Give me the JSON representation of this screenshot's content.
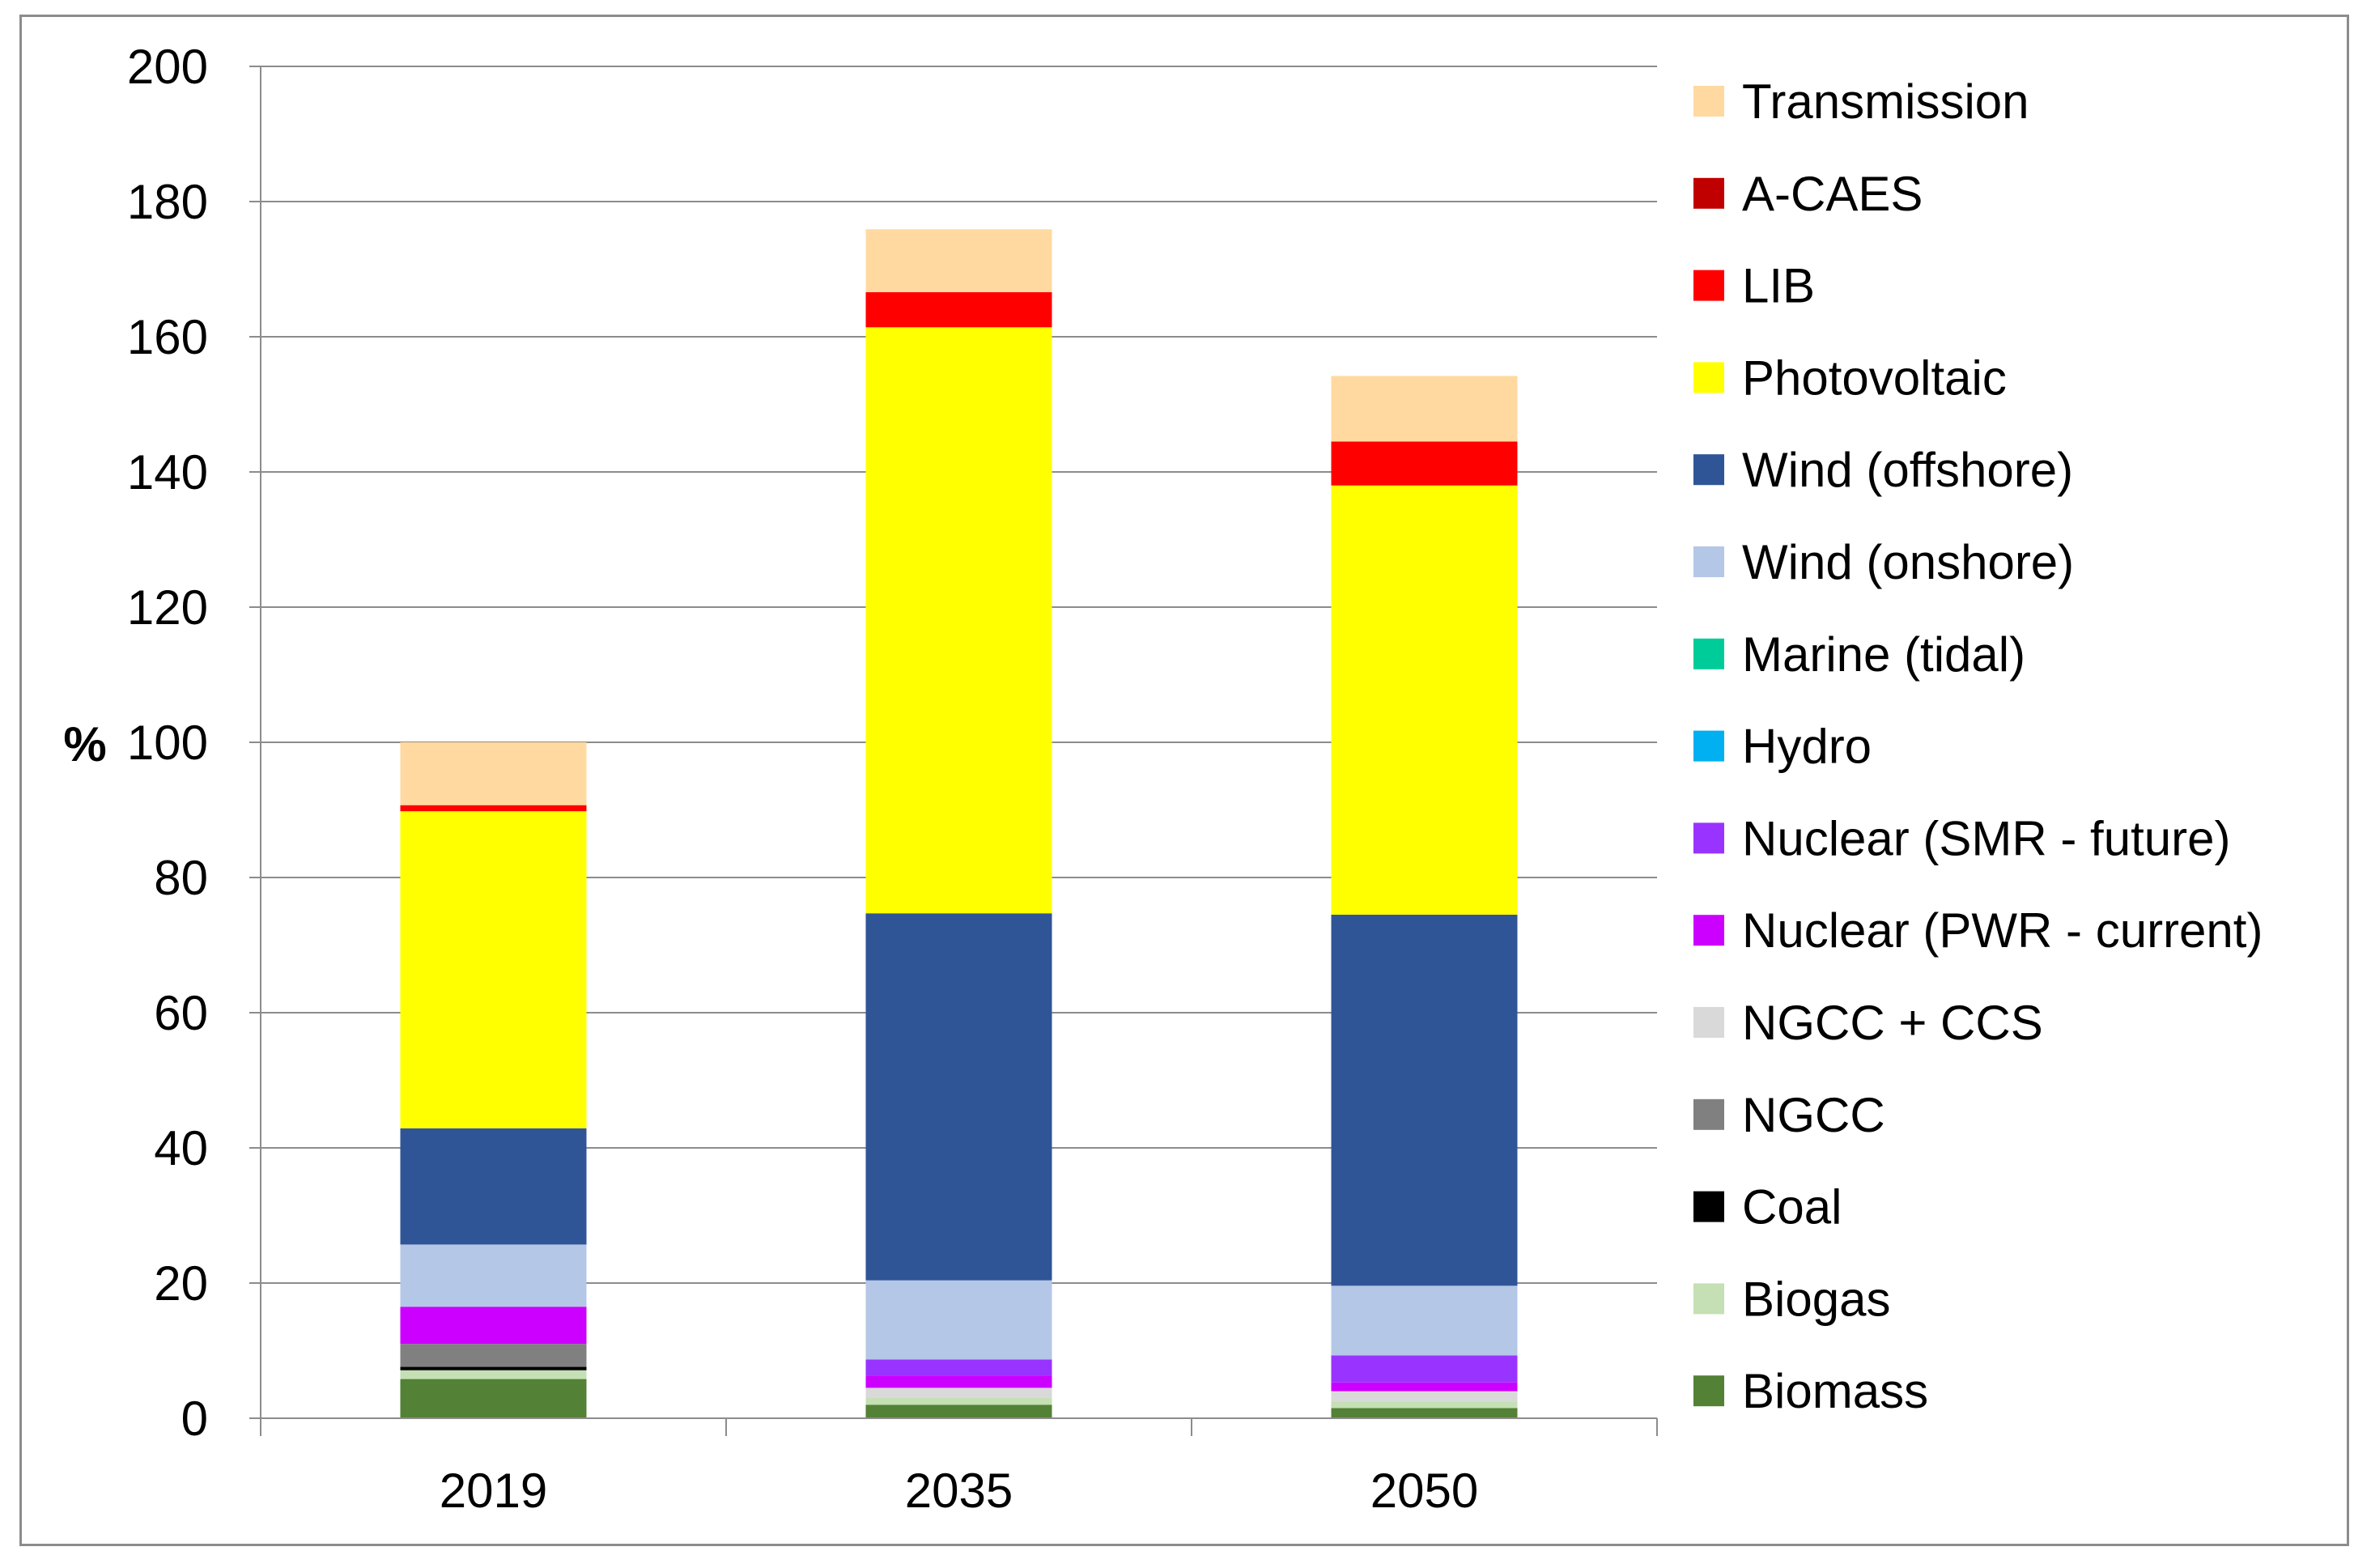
{
  "chart_data": {
    "type": "bar",
    "stacked": true,
    "title": "",
    "xlabel": "",
    "ylabel": "%",
    "ylim": [
      0,
      200
    ],
    "yticks": [
      0,
      20,
      40,
      60,
      80,
      100,
      120,
      140,
      160,
      180,
      200
    ],
    "grid": true,
    "legend_position": "right",
    "categories": [
      "2019",
      "2035",
      "2050"
    ],
    "series": [
      {
        "name": "Biomass",
        "color": "#538135",
        "values": [
          5.8,
          2.0,
          1.5
        ]
      },
      {
        "name": "Biogas",
        "color": "#C5E0B4",
        "values": [
          1.3,
          1.0,
          1.0
        ]
      },
      {
        "name": "Coal",
        "color": "#000000",
        "values": [
          0.5,
          0,
          0
        ]
      },
      {
        "name": "NGCC",
        "color": "#808080",
        "values": [
          3.4,
          0,
          0
        ]
      },
      {
        "name": "NGCC + CCS",
        "color": "#D9D9D9",
        "values": [
          0,
          1.5,
          1.5
        ]
      },
      {
        "name": "Nuclear (PWR - current)",
        "color": "#CC00FF",
        "values": [
          5.5,
          1.8,
          1.3
        ]
      },
      {
        "name": "Nuclear (SMR - future)",
        "color": "#9933FF",
        "values": [
          0,
          2.4,
          4.0
        ]
      },
      {
        "name": "Hydro",
        "color": "#00B0F0",
        "values": [
          0,
          0,
          0
        ]
      },
      {
        "name": "Marine (tidal)",
        "color": "#00CC99",
        "values": [
          0,
          0,
          0
        ]
      },
      {
        "name": "Wind (onshore)",
        "color": "#B4C7E7",
        "values": [
          9.2,
          11.7,
          10.3
        ]
      },
      {
        "name": "Wind (offshore)",
        "color": "#2F5597",
        "values": [
          17.2,
          54.3,
          54.9
        ]
      },
      {
        "name": "Photovoltaic",
        "color": "#FFFF00",
        "values": [
          46.9,
          86.7,
          63.5
        ]
      },
      {
        "name": "LIB",
        "color": "#FF0000",
        "values": [
          0.9,
          5.2,
          6.5
        ]
      },
      {
        "name": "A-CAES",
        "color": "#C00000",
        "values": [
          0,
          0,
          0
        ]
      },
      {
        "name": "Transmission",
        "color": "#FFD9A0",
        "values": [
          9.3,
          9.3,
          9.7
        ]
      }
    ]
  }
}
